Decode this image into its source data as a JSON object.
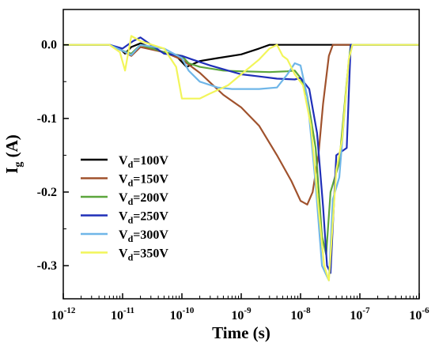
{
  "chart_data": {
    "type": "line",
    "xlabel": "Time (s)",
    "ylabel_base": "I",
    "ylabel_sub": "g",
    "ylabel_unit": " (A)",
    "xscale": "log",
    "xlim": [
      1e-12,
      1e-06
    ],
    "ylim": [
      -0.345,
      0.048
    ],
    "grid": false,
    "legend_position": "lower-left",
    "x_ticks": [
      {
        "value": 1e-12,
        "base": "10",
        "exp": "-12"
      },
      {
        "value": 1e-11,
        "base": "10",
        "exp": "-11"
      },
      {
        "value": 1e-10,
        "base": "10",
        "exp": "-10"
      },
      {
        "value": 1e-09,
        "base": "10",
        "exp": "-9"
      },
      {
        "value": 1e-08,
        "base": "10",
        "exp": "-8"
      },
      {
        "value": 1e-07,
        "base": "10",
        "exp": "-7"
      },
      {
        "value": 1e-06,
        "base": "10",
        "exp": "-6"
      }
    ],
    "y_ticks": [
      {
        "value": 0.0,
        "label": "0.0"
      },
      {
        "value": -0.1,
        "label": "-0.1"
      },
      {
        "value": -0.2,
        "label": "-0.2"
      },
      {
        "value": -0.3,
        "label": "-0.3"
      }
    ],
    "series": [
      {
        "name_base": "V",
        "name_sub": "d",
        "name_rest": "=100V",
        "color": "#000000",
        "x": [
          1e-12,
          6e-12,
          9e-12,
          1.1e-11,
          1.4e-11,
          2e-11,
          4e-11,
          8e-11,
          1.2e-10,
          2e-10,
          4e-10,
          1e-09,
          2e-09,
          3e-09,
          5e-09,
          1e-08,
          1e-06
        ],
        "y": [
          0.0,
          0.0,
          -0.005,
          -0.012,
          -0.003,
          0.002,
          -0.008,
          -0.015,
          -0.03,
          -0.022,
          -0.018,
          -0.013,
          -0.005,
          0.0,
          0.0,
          0.0,
          0.0
        ]
      },
      {
        "name_base": "V",
        "name_sub": "d",
        "name_rest": "=150V",
        "color": "#a0522d",
        "x": [
          1e-12,
          6e-12,
          1e-11,
          1.4e-11,
          2e-11,
          5e-11,
          1e-10,
          2e-10,
          5e-10,
          1e-09,
          2e-09,
          4e-09,
          7e-09,
          1e-08,
          1.3e-08,
          1.6e-08,
          2e-08,
          2.4e-08,
          3e-08,
          3.5e-08,
          1e-06
        ],
        "y": [
          0.0,
          0.0,
          -0.008,
          -0.015,
          -0.003,
          -0.01,
          -0.02,
          -0.038,
          -0.068,
          -0.085,
          -0.11,
          -0.15,
          -0.185,
          -0.212,
          -0.217,
          -0.2,
          -0.15,
          -0.08,
          -0.015,
          0.0,
          0.0
        ]
      },
      {
        "name_base": "V",
        "name_sub": "d",
        "name_rest": "=200V",
        "color": "#5ca63c",
        "x": [
          1e-12,
          6e-12,
          1e-11,
          1.4e-11,
          2e-11,
          5e-11,
          1e-10,
          1.3e-10,
          2e-10,
          5e-10,
          1e-09,
          3e-09,
          6e-09,
          8e-09,
          1e-08,
          1.3e-08,
          1.8e-08,
          2.3e-08,
          2.7e-08,
          3.2e-08,
          4.5e-08,
          6e-08,
          7e-08,
          1e-06
        ],
        "y": [
          0.0,
          0.0,
          -0.008,
          -0.012,
          0.0,
          -0.01,
          -0.015,
          -0.025,
          -0.03,
          -0.035,
          -0.036,
          -0.037,
          -0.036,
          -0.035,
          -0.045,
          -0.07,
          -0.14,
          -0.26,
          -0.285,
          -0.2,
          -0.16,
          -0.05,
          0.0,
          0.0
        ]
      },
      {
        "name_base": "V",
        "name_sub": "d",
        "name_rest": "=250V",
        "color": "#1f2fb8",
        "x": [
          1e-12,
          6e-12,
          1e-11,
          1.5e-11,
          2e-11,
          3e-11,
          5e-11,
          1e-10,
          1.5e-10,
          3e-10,
          6e-10,
          1e-09,
          2e-09,
          4e-09,
          8e-09,
          1e-08,
          1.4e-08,
          1.9e-08,
          2.4e-08,
          2.8e-08,
          3.2e-08,
          4e-08,
          6e-08,
          7e-08,
          1e-06
        ],
        "y": [
          0.0,
          0.0,
          -0.005,
          0.005,
          0.01,
          0.0,
          -0.012,
          -0.015,
          -0.02,
          -0.028,
          -0.035,
          -0.04,
          -0.043,
          -0.046,
          -0.047,
          -0.045,
          -0.06,
          -0.12,
          -0.22,
          -0.3,
          -0.31,
          -0.15,
          -0.14,
          0.0,
          0.0
        ]
      },
      {
        "name_base": "V",
        "name_sub": "d",
        "name_rest": "=300V",
        "color": "#6fb6e8",
        "x": [
          1e-12,
          6e-12,
          1e-11,
          1.4e-11,
          2e-11,
          5e-11,
          1e-10,
          1.3e-10,
          2e-10,
          4e-10,
          7e-10,
          1e-09,
          2e-09,
          4e-09,
          6e-09,
          8e-09,
          1e-08,
          1.3e-08,
          1.8e-08,
          2.3e-08,
          3e-08,
          3.5e-08,
          4.5e-08,
          6.5e-08,
          7.5e-08,
          1e-06
        ],
        "y": [
          0.0,
          0.0,
          -0.008,
          -0.014,
          0.0,
          -0.005,
          -0.018,
          -0.035,
          -0.05,
          -0.058,
          -0.06,
          -0.06,
          -0.06,
          -0.058,
          -0.04,
          -0.025,
          -0.028,
          -0.07,
          -0.19,
          -0.3,
          -0.32,
          -0.21,
          -0.18,
          -0.02,
          0.0,
          0.0
        ]
      },
      {
        "name_base": "V",
        "name_sub": "d",
        "name_rest": "=350V",
        "color": "#f2f55a",
        "x": [
          1e-12,
          6e-12,
          9e-12,
          1.1e-11,
          1.4e-11,
          2e-11,
          5e-11,
          8e-11,
          1e-10,
          2e-10,
          3e-10,
          6e-10,
          1e-09,
          2e-09,
          3e-09,
          4e-09,
          5e-09,
          6e-09,
          8e-09,
          1.1e-08,
          1.5e-08,
          2e-08,
          2.5e-08,
          3e-08,
          4e-08,
          5e-08,
          6.5e-08,
          7.5e-08,
          1e-06
        ],
        "y": [
          0.0,
          0.0,
          -0.01,
          -0.035,
          0.012,
          0.005,
          -0.005,
          -0.03,
          -0.073,
          -0.073,
          -0.066,
          -0.055,
          -0.04,
          -0.02,
          -0.005,
          0.0,
          -0.015,
          -0.02,
          -0.04,
          -0.055,
          -0.11,
          -0.22,
          -0.3,
          -0.32,
          -0.17,
          -0.13,
          -0.02,
          0.0,
          0.0
        ]
      }
    ]
  }
}
